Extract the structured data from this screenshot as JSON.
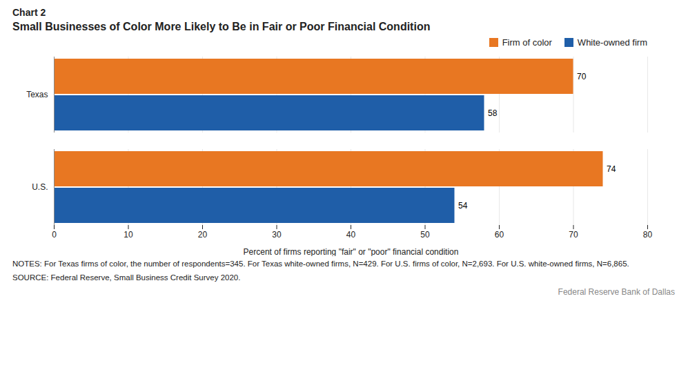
{
  "chart_data": {
    "type": "bar",
    "orientation": "horizontal",
    "title": "Small Businesses of Color More Likely to Be in Fair or Poor Financial Condition",
    "annotations": [
      "Chart 2",
      "NOTES: For Texas firms of color, the number of respondents=345. For Texas white-owned firms, N=429. For U.S. firms of color, N=2,693. For U.S. white-owned firms, N=6,865.",
      "SOURCE: Federal Reserve, Small Business Credit Survey 2020.",
      "Federal Reserve Bank of Dallas"
    ],
    "categories": [
      "U.S.",
      "Texas"
    ],
    "series": [
      {
        "name": "Firm of color",
        "color": "#E87722",
        "values": [
          74,
          70
        ]
      },
      {
        "name": "White-owned firm",
        "color": "#1F5EA8",
        "values": [
          54,
          58
        ]
      }
    ],
    "x_label": "Percent of firms reporting \"fair\" or \"poor\" financial condition",
    "xlim": [
      0,
      80
    ],
    "xticks": [
      0,
      10,
      20,
      30,
      40,
      50,
      60,
      70,
      80
    ],
    "grid": true,
    "legend": "upper right",
    "data_labels": true
  }
}
